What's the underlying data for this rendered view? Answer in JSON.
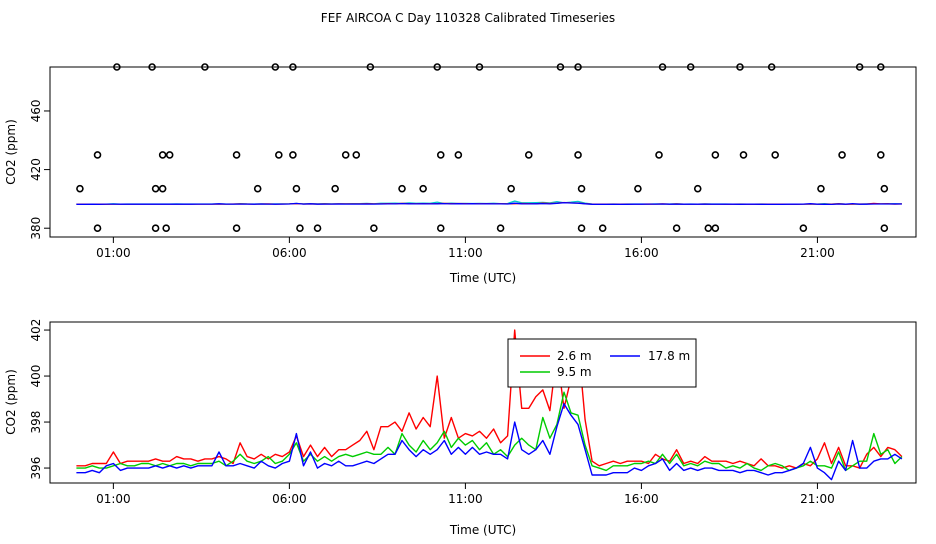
{
  "title": "FEF AIRCOA C  Day 110328  Calibrated Timeseries",
  "colors": {
    "red": "#ff0000",
    "green": "#00cc00",
    "blue": "#0000ff",
    "cyan": "#00cccc",
    "axis": "#000000"
  },
  "chart_data": [
    {
      "type": "scatter",
      "xlabel": "Time (UTC)",
      "ylabel": "CO2 (ppm)",
      "x_ticks": [
        "01:00",
        "06:00",
        "11:00",
        "16:00",
        "21:00"
      ],
      "y_ticks": [
        "380",
        "420",
        "460"
      ],
      "y_tick_values": [
        380,
        420,
        460
      ],
      "xlim": [
        -0.8,
        23.8
      ],
      "ylim": [
        374,
        490
      ],
      "grid": false,
      "circles": [
        {
          "x": 0.55,
          "y": 380
        },
        {
          "x": 0.05,
          "y": 407
        },
        {
          "x": 0.55,
          "y": 430
        },
        {
          "x": 1.1,
          "y": 490
        },
        {
          "x": 2.2,
          "y": 380
        },
        {
          "x": 2.2,
          "y": 407
        },
        {
          "x": 2.1,
          "y": 490
        },
        {
          "x": 2.4,
          "y": 407
        },
        {
          "x": 2.6,
          "y": 430
        },
        {
          "x": 2.5,
          "y": 380
        },
        {
          "x": 3.6,
          "y": 490
        },
        {
          "x": 4.5,
          "y": 430
        },
        {
          "x": 4.5,
          "y": 380
        },
        {
          "x": 5.1,
          "y": 407
        },
        {
          "x": 5.6,
          "y": 490
        },
        {
          "x": 5.7,
          "y": 430
        },
        {
          "x": 6.1,
          "y": 490
        },
        {
          "x": 6.1,
          "y": 430
        },
        {
          "x": 6.2,
          "y": 407
        },
        {
          "x": 6.3,
          "y": 380
        },
        {
          "x": 6.8,
          "y": 380
        },
        {
          "x": 7.3,
          "y": 407
        },
        {
          "x": 7.9,
          "y": 430
        },
        {
          "x": 8.3,
          "y": 490
        },
        {
          "x": 8.4,
          "y": 380
        },
        {
          "x": 9.2,
          "y": 407
        },
        {
          "x": 9.8,
          "y": 407
        },
        {
          "x": 10.2,
          "y": 490
        },
        {
          "x": 10.3,
          "y": 430
        },
        {
          "x": 10.3,
          "y": 380
        },
        {
          "x": 10.8,
          "y": 430
        },
        {
          "x": 11.4,
          "y": 490
        },
        {
          "x": 12.0,
          "y": 380
        },
        {
          "x": 12.3,
          "y": 407
        },
        {
          "x": 12.8,
          "y": 430
        },
        {
          "x": 13.7,
          "y": 490
        },
        {
          "x": 14.2,
          "y": 490
        },
        {
          "x": 14.2,
          "y": 430
        },
        {
          "x": 14.3,
          "y": 407
        },
        {
          "x": 14.3,
          "y": 380
        },
        {
          "x": 14.9,
          "y": 380
        },
        {
          "x": 15.9,
          "y": 407
        },
        {
          "x": 16.5,
          "y": 430
        },
        {
          "x": 16.6,
          "y": 490
        },
        {
          "x": 17.0,
          "y": 380
        },
        {
          "x": 17.6,
          "y": 407
        },
        {
          "x": 17.9,
          "y": 380
        },
        {
          "x": 18.1,
          "y": 430
        },
        {
          "x": 18.8,
          "y": 490
        },
        {
          "x": 18.9,
          "y": 430
        },
        {
          "x": 19.7,
          "y": 490
        },
        {
          "x": 19.8,
          "y": 430
        },
        {
          "x": 20.6,
          "y": 380
        },
        {
          "x": 21.1,
          "y": 407
        },
        {
          "x": 21.7,
          "y": 430
        },
        {
          "x": 22.2,
          "y": 490
        },
        {
          "x": 22.8,
          "y": 490
        },
        {
          "x": 22.8,
          "y": 430
        },
        {
          "x": 22.9,
          "y": 407
        },
        {
          "x": 22.9,
          "y": 380
        },
        {
          "x": 18.1,
          "y": 380
        },
        {
          "x": 2.4,
          "y": 430
        },
        {
          "x": 17.4,
          "y": 490
        },
        {
          "x": 7.6,
          "y": 430
        }
      ],
      "line_level": 396.5
    },
    {
      "type": "line",
      "xlabel": "Time (UTC)",
      "ylabel": "CO2 (ppm)",
      "x_ticks": [
        "01:00",
        "06:00",
        "11:00",
        "16:00",
        "21:00"
      ],
      "y_ticks": [
        "396",
        "398",
        "400",
        "402"
      ],
      "y_tick_values": [
        396,
        398,
        400,
        402
      ],
      "xlim": [
        -0.8,
        23.8
      ],
      "ylim": [
        395.35,
        402.35
      ],
      "grid": false,
      "legend_position": "top-center",
      "x_hours": [
        -0.05,
        0.2,
        0.4,
        0.6,
        0.8,
        1.0,
        1.2,
        1.4,
        1.6,
        1.8,
        2.0,
        2.2,
        2.4,
        2.6,
        2.8,
        3.0,
        3.2,
        3.4,
        3.6,
        3.8,
        4.0,
        4.2,
        4.4,
        4.6,
        4.8,
        5.0,
        5.2,
        5.4,
        5.6,
        5.8,
        6.0,
        6.2,
        6.4,
        6.6,
        6.8,
        7.0,
        7.2,
        7.4,
        7.6,
        7.8,
        8.0,
        8.2,
        8.4,
        8.6,
        8.8,
        9.0,
        9.2,
        9.4,
        9.6,
        9.8,
        10.0,
        10.2,
        10.4,
        10.6,
        10.8,
        11.0,
        11.2,
        11.4,
        11.6,
        11.8,
        12.0,
        12.2,
        12.4,
        12.6,
        12.8,
        13.0,
        13.2,
        13.4,
        13.6,
        13.8,
        14.0,
        14.2,
        14.4,
        14.6,
        14.8,
        15.0,
        15.2,
        15.4,
        15.6,
        15.8,
        16.0,
        16.2,
        16.4,
        16.6,
        16.8,
        17.0,
        17.2,
        17.4,
        17.6,
        17.8,
        18.0,
        18.2,
        18.4,
        18.6,
        18.8,
        19.0,
        19.2,
        19.4,
        19.6,
        19.8,
        20.0,
        20.2,
        20.4,
        20.6,
        20.8,
        21.0,
        21.2,
        21.4,
        21.6,
        21.8,
        22.0,
        22.2,
        22.4,
        22.6,
        22.8,
        23.0,
        23.2,
        23.4
      ],
      "series": [
        {
          "name": "2.6 m",
          "color": "#ff0000",
          "values": [
            396.1,
            396.1,
            396.2,
            396.2,
            396.2,
            396.7,
            396.2,
            396.3,
            396.3,
            396.3,
            396.3,
            396.4,
            396.3,
            396.3,
            396.5,
            396.4,
            396.4,
            396.3,
            396.4,
            396.4,
            396.5,
            396.4,
            396.2,
            397.1,
            396.5,
            396.4,
            396.6,
            396.4,
            396.6,
            396.5,
            396.7,
            397.4,
            396.5,
            397.0,
            396.5,
            396.9,
            396.5,
            396.8,
            396.8,
            397.0,
            397.2,
            397.6,
            396.8,
            397.8,
            397.8,
            398.0,
            397.6,
            398.4,
            397.7,
            398.2,
            397.8,
            400.0,
            397.3,
            398.2,
            397.3,
            397.5,
            397.4,
            397.6,
            397.3,
            397.7,
            397.1,
            397.4,
            402.0,
            398.6,
            398.6,
            399.1,
            399.4,
            398.5,
            401.0,
            398.6,
            399.9,
            401.5,
            398.1,
            396.3,
            396.1,
            396.2,
            396.3,
            396.2,
            396.3,
            396.3,
            396.3,
            396.2,
            396.6,
            396.4,
            396.3,
            396.8,
            396.2,
            396.3,
            396.2,
            396.5,
            396.3,
            396.3,
            396.3,
            396.2,
            396.3,
            396.2,
            396.1,
            396.4,
            396.1,
            396.1,
            396.0,
            396.1,
            396.0,
            396.2,
            396.1,
            396.4,
            397.1,
            396.2,
            396.9,
            396.1,
            396.1,
            396.0,
            396.6,
            396.9,
            396.5,
            396.9,
            396.8,
            396.5
          ]
        },
        {
          "name": "9.5 m",
          "color": "#00cc00",
          "values": [
            396.0,
            396.0,
            396.1,
            396.0,
            396.0,
            396.1,
            396.2,
            396.1,
            396.1,
            396.2,
            396.2,
            396.1,
            396.2,
            396.1,
            396.2,
            396.2,
            396.1,
            396.2,
            396.2,
            396.2,
            396.3,
            396.1,
            396.3,
            396.6,
            396.3,
            396.2,
            396.3,
            396.5,
            396.2,
            396.3,
            396.6,
            397.1,
            396.3,
            396.6,
            396.3,
            396.5,
            396.3,
            396.5,
            396.6,
            396.5,
            396.6,
            396.7,
            396.6,
            396.6,
            396.9,
            396.6,
            397.5,
            397.0,
            396.7,
            397.2,
            396.8,
            397.1,
            397.6,
            396.9,
            397.3,
            397.0,
            397.2,
            396.8,
            397.1,
            396.6,
            396.8,
            396.5,
            397.0,
            397.3,
            397.0,
            396.8,
            398.2,
            397.3,
            397.9,
            399.3,
            398.4,
            398.3,
            397.0,
            396.1,
            396.0,
            395.9,
            396.1,
            396.1,
            396.1,
            396.2,
            396.2,
            396.3,
            396.2,
            396.6,
            396.2,
            396.6,
            396.1,
            396.2,
            396.1,
            396.3,
            396.2,
            396.2,
            396.0,
            396.1,
            396.0,
            396.2,
            396.0,
            395.9,
            396.1,
            396.2,
            396.1,
            395.9,
            396.0,
            396.1,
            396.3,
            396.1,
            396.1,
            396.0,
            396.7,
            395.9,
            396.1,
            396.3,
            396.3,
            397.5,
            396.6,
            396.8,
            396.2,
            396.5
          ]
        },
        {
          "name": "17.8 m",
          "color": "#0000ff",
          "values": [
            395.8,
            395.8,
            395.9,
            395.8,
            396.1,
            396.2,
            395.9,
            396.0,
            396.0,
            396.0,
            396.0,
            396.1,
            396.0,
            396.1,
            396.0,
            396.1,
            396.0,
            396.1,
            396.1,
            396.1,
            396.7,
            396.1,
            396.1,
            396.2,
            396.1,
            396.0,
            396.3,
            396.1,
            396.0,
            396.2,
            396.3,
            397.5,
            396.1,
            396.7,
            396.0,
            396.2,
            396.1,
            396.3,
            396.1,
            396.1,
            396.2,
            396.3,
            396.2,
            396.4,
            396.6,
            396.6,
            397.2,
            396.8,
            396.5,
            396.8,
            396.6,
            396.8,
            397.2,
            396.6,
            396.9,
            396.6,
            396.9,
            396.6,
            396.7,
            396.6,
            396.6,
            396.4,
            398.0,
            396.8,
            396.6,
            396.8,
            397.2,
            396.6,
            397.8,
            398.8,
            398.3,
            397.9,
            396.8,
            395.7,
            395.7,
            395.7,
            395.8,
            395.8,
            395.8,
            396.0,
            395.9,
            396.1,
            396.2,
            396.4,
            395.9,
            396.2,
            395.9,
            396.0,
            395.9,
            396.0,
            396.0,
            395.9,
            395.9,
            395.9,
            395.8,
            395.9,
            395.9,
            395.8,
            395.7,
            395.8,
            395.8,
            395.9,
            396.0,
            396.2,
            396.9,
            396.0,
            395.8,
            395.5,
            396.3,
            395.9,
            397.2,
            396.0,
            396.0,
            396.3,
            396.4,
            396.4,
            396.6,
            396.4
          ]
        }
      ]
    }
  ]
}
